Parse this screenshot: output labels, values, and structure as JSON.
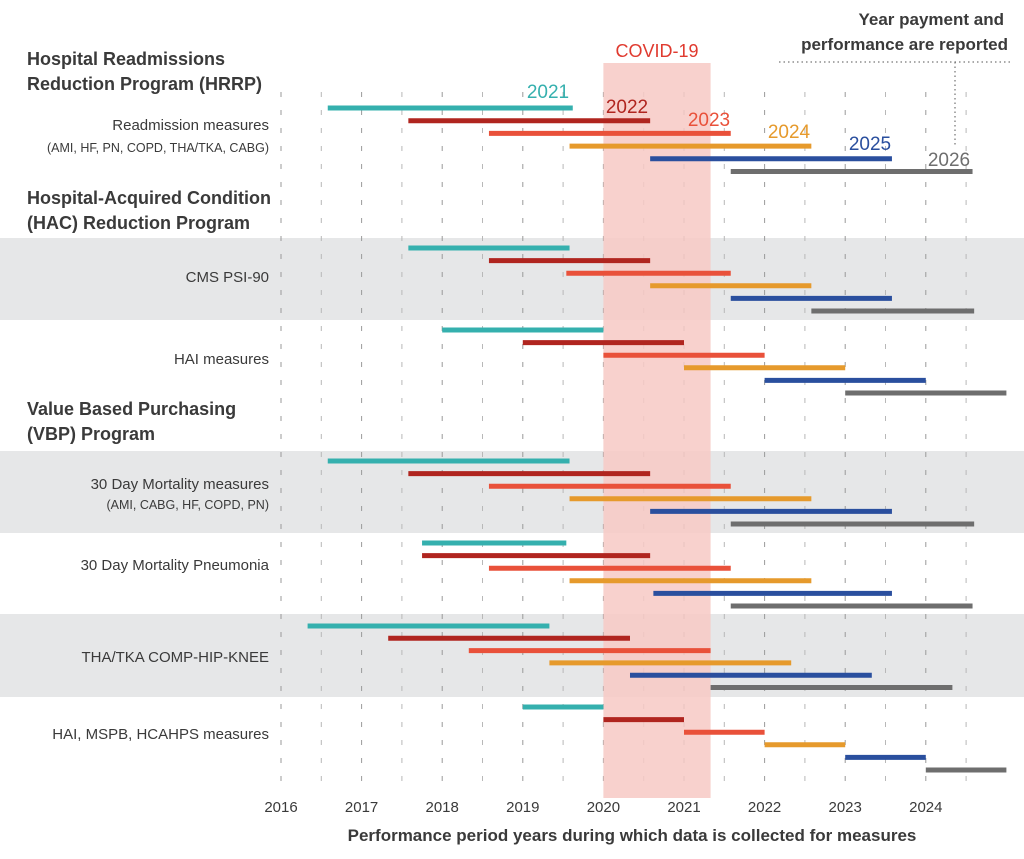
{
  "chart_data": {
    "type": "gantt",
    "xlabel": "Performance period years during which data is collected for measures",
    "x_ticks": [
      "2016",
      "2017",
      "2018",
      "2019",
      "2020",
      "2021",
      "2022",
      "2023",
      "2024"
    ],
    "xlim": [
      2016,
      2025
    ],
    "legend": [
      {
        "year": "2021",
        "color": "#35b0ae"
      },
      {
        "year": "2022",
        "color": "#b0251f"
      },
      {
        "year": "2023",
        "color": "#e9513a"
      },
      {
        "year": "2024",
        "color": "#e69a2c"
      },
      {
        "year": "2025",
        "color": "#2a4f9e"
      },
      {
        "year": "2026",
        "color": "#6e6e6e"
      }
    ],
    "covid": {
      "label": "COVID-19",
      "start": 2020.0,
      "end": 2021.33,
      "color": "#f7c9c4"
    },
    "note": {
      "line1": "Year payment and",
      "line2": "performance are reported"
    },
    "sections": [
      {
        "title1": "Hospital Readmissions",
        "title2": "Reduction Program (HRRP)",
        "measures": [
          {
            "label": "Readmission measures",
            "sublabel": "(AMI, HF, PN, COPD, THA/TKA, CABG)",
            "shaded": false,
            "bars": [
              [
                2016.58,
                2019.62
              ],
              [
                2017.58,
                2020.58
              ],
              [
                2018.58,
                2021.58
              ],
              [
                2019.58,
                2022.58
              ],
              [
                2020.58,
                2023.58
              ],
              [
                2021.58,
                2024.58
              ]
            ]
          }
        ]
      },
      {
        "title1": "Hospital-Acquired Condition",
        "title2": "(HAC) Reduction Program",
        "measures": [
          {
            "label": "CMS PSI-90",
            "sublabel": "",
            "shaded": true,
            "bars": [
              [
                2017.58,
                2019.58
              ],
              [
                2018.58,
                2020.58
              ],
              [
                2019.54,
                2021.58
              ],
              [
                2020.58,
                2022.58
              ],
              [
                2021.58,
                2023.58
              ],
              [
                2022.58,
                2024.6
              ]
            ]
          },
          {
            "label": "HAI measures",
            "sublabel": "",
            "shaded": false,
            "bars": [
              [
                2018.0,
                2020.0
              ],
              [
                2019.0,
                2021.0
              ],
              [
                2020.0,
                2022.0
              ],
              [
                2021.0,
                2023.0
              ],
              [
                2022.0,
                2024.0
              ],
              [
                2023.0,
                2025.0
              ]
            ]
          }
        ]
      },
      {
        "title1": "Value Based Purchasing",
        "title2": "(VBP) Program",
        "measures": [
          {
            "label": "30 Day Mortality measures",
            "sublabel": "(AMI, CABG, HF, COPD, PN)",
            "shaded": true,
            "bars": [
              [
                2016.58,
                2019.58
              ],
              [
                2017.58,
                2020.58
              ],
              [
                2018.58,
                2021.58
              ],
              [
                2019.58,
                2022.58
              ],
              [
                2020.58,
                2023.58
              ],
              [
                2021.58,
                2024.6
              ]
            ]
          },
          {
            "label": "30 Day Mortality Pneumonia",
            "sublabel": "",
            "shaded": false,
            "bars": [
              [
                2017.75,
                2019.54
              ],
              [
                2017.75,
                2020.58
              ],
              [
                2018.58,
                2021.58
              ],
              [
                2019.58,
                2022.58
              ],
              [
                2020.62,
                2023.58
              ],
              [
                2021.58,
                2024.58
              ]
            ]
          },
          {
            "label": "THA/TKA COMP-HIP-KNEE",
            "sublabel": "",
            "shaded": true,
            "bars": [
              [
                2016.33,
                2019.33
              ],
              [
                2017.33,
                2020.33
              ],
              [
                2018.33,
                2021.33
              ],
              [
                2019.33,
                2022.33
              ],
              [
                2020.33,
                2023.33
              ],
              [
                2021.33,
                2024.33
              ]
            ]
          },
          {
            "label": "HAI, MSPB, HCAHPS measures",
            "sublabel": "",
            "shaded": false,
            "bars": [
              [
                2019.0,
                2020.0
              ],
              [
                2020.0,
                2021.0
              ],
              [
                2021.0,
                2022.0
              ],
              [
                2022.0,
                2023.0
              ],
              [
                2023.0,
                2024.0
              ],
              [
                2024.0,
                2025.0
              ]
            ]
          }
        ]
      }
    ]
  }
}
